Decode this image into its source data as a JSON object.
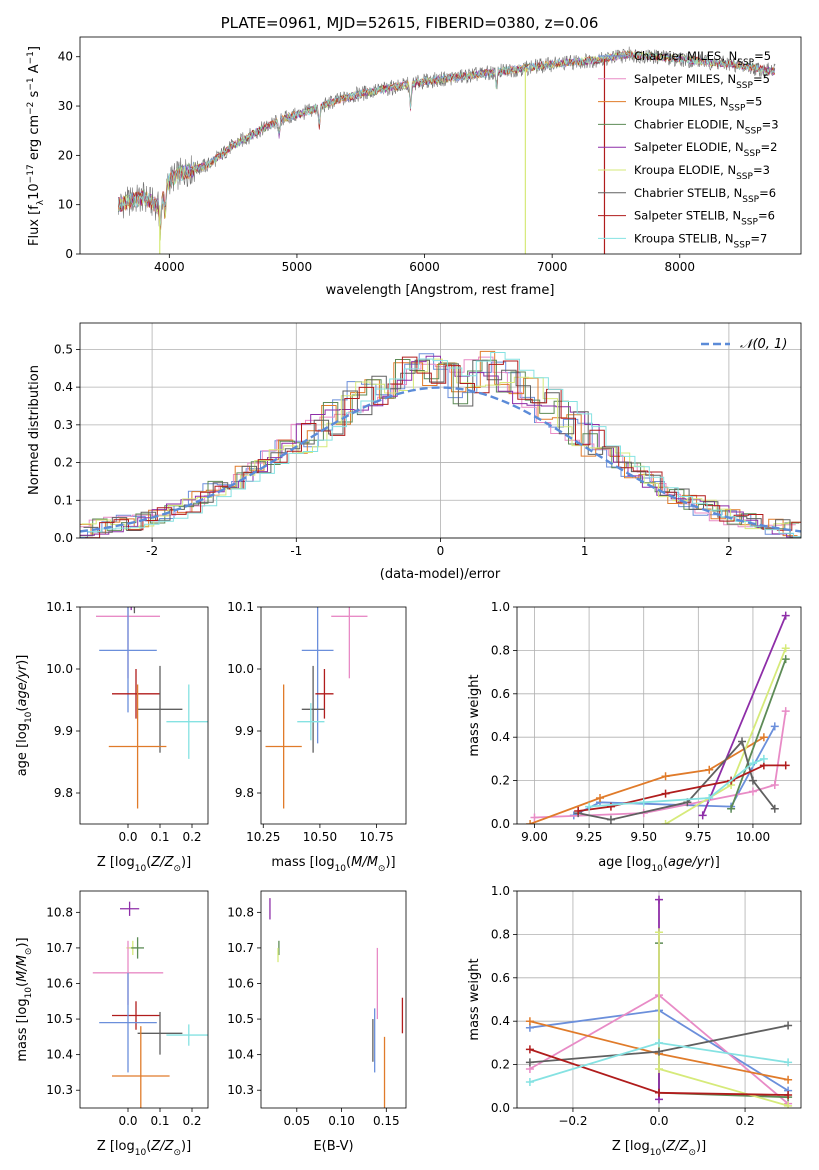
{
  "colors": {
    "Chabrier MILES": "#6b8fdb",
    "Salpeter MILES": "#e88bc6",
    "Kroupa MILES": "#e07b2a",
    "Chabrier ELODIE": "#5d8b56",
    "Salpeter ELODIE": "#8e2ea8",
    "Kroupa ELODIE": "#d6ea7a",
    "Chabrier STELIB": "#606060",
    "Salpeter STELIB": "#b01c1c",
    "Kroupa STELIB": "#85e2e2"
  },
  "chart_data": [
    {
      "id": "spectrum",
      "type": "line",
      "title": "PLATE=0961, MJD=52615, FIBERID=0380, z=0.06",
      "xlabel": "wavelength [Angstrom, rest frame]",
      "ylabel": "Flux [f_λ10^-17 erg cm^-2 s^-1 A^-1]",
      "xlim": [
        3300,
        8950
      ],
      "ylim": [
        0,
        44
      ],
      "xticks": [
        4000,
        5000,
        6000,
        7000,
        8000
      ],
      "yticks": [
        0,
        10,
        20,
        30,
        40
      ],
      "continuum": [
        [
          3600,
          10
        ],
        [
          3800,
          11.5
        ],
        [
          3920,
          9.5
        ],
        [
          4000,
          15
        ],
        [
          4100,
          16.5
        ],
        [
          4300,
          18
        ],
        [
          4500,
          22
        ],
        [
          4700,
          25
        ],
        [
          4900,
          27.5
        ],
        [
          5100,
          29
        ],
        [
          5300,
          31
        ],
        [
          5500,
          32.5
        ],
        [
          5800,
          34
        ],
        [
          6000,
          35
        ],
        [
          6300,
          36
        ],
        [
          6600,
          37
        ],
        [
          7000,
          38.5
        ],
        [
          7400,
          39.5
        ],
        [
          7600,
          40.5
        ],
        [
          8000,
          39.5
        ],
        [
          8400,
          38.5
        ],
        [
          8750,
          37
        ]
      ],
      "features": [
        [
          3930,
          -6
        ],
        [
          3968,
          -5
        ],
        [
          4861,
          -3
        ],
        [
          5175,
          -4
        ],
        [
          5890,
          -5
        ],
        [
          6563,
          -3
        ]
      ],
      "spikes": [
        {
          "x": 3925,
          "model": "Kroupa ELODIE"
        },
        {
          "x": 6790,
          "model": "Kroupa ELODIE"
        },
        {
          "x": 7410,
          "model": "Salpeter STELIB"
        }
      ],
      "legend_position": "right",
      "legend": [
        {
          "model": "Chabrier MILES",
          "label_main": "Chabrier MILES, N",
          "label_sub": "SSP",
          "label_end": "=5"
        },
        {
          "model": "Salpeter MILES",
          "label_main": "Salpeter MILES, N",
          "label_sub": "SSP",
          "label_end": "=5"
        },
        {
          "model": "Kroupa MILES",
          "label_main": "Kroupa MILES, N",
          "label_sub": "SSP",
          "label_end": "=5"
        },
        {
          "model": "Chabrier ELODIE",
          "label_main": "Chabrier ELODIE, N",
          "label_sub": "SSP",
          "label_end": "=3"
        },
        {
          "model": "Salpeter ELODIE",
          "label_main": "Salpeter ELODIE, N",
          "label_sub": "SSP",
          "label_end": "=2"
        },
        {
          "model": "Kroupa ELODIE",
          "label_main": "Kroupa ELODIE, N",
          "label_sub": "SSP",
          "label_end": "=3"
        },
        {
          "model": "Chabrier STELIB",
          "label_main": "Chabrier STELIB, N",
          "label_sub": "SSP",
          "label_end": "=6"
        },
        {
          "model": "Salpeter STELIB",
          "label_main": "Salpeter STELIB, N",
          "label_sub": "SSP",
          "label_end": "=6"
        },
        {
          "model": "Kroupa STELIB",
          "label_main": "Kroupa STELIB, N",
          "label_sub": "SSP",
          "label_end": "=7"
        }
      ]
    },
    {
      "id": "residuals",
      "type": "line",
      "xlabel": "(data-model)/error",
      "ylabel": "Normed distribution",
      "xlim": [
        -2.5,
        2.5
      ],
      "ylim": [
        0,
        0.57
      ],
      "xticks": [
        -2,
        -1,
        0,
        1,
        2
      ],
      "yticks": [
        0.0,
        0.1,
        0.2,
        0.3,
        0.4,
        0.5
      ],
      "grid": true,
      "bin_width": 0.1,
      "hist_values": [
        0.02,
        0.03,
        0.035,
        0.04,
        0.05,
        0.06,
        0.07,
        0.085,
        0.105,
        0.13,
        0.15,
        0.17,
        0.19,
        0.215,
        0.24,
        0.26,
        0.285,
        0.315,
        0.345,
        0.37,
        0.395,
        0.415,
        0.435,
        0.455,
        0.445,
        0.42,
        0.395,
        0.43,
        0.45,
        0.43,
        0.4,
        0.38,
        0.35,
        0.32,
        0.29,
        0.26,
        0.23,
        0.205,
        0.18,
        0.155,
        0.13,
        0.11,
        0.095,
        0.08,
        0.065,
        0.055,
        0.045,
        0.038,
        0.03,
        0.022
      ],
      "normal_curve": {
        "label": "𝒩(0, 1)",
        "mean": 0,
        "sigma": 1,
        "color": "#5b8bd8"
      },
      "legend_position": "upper right"
    },
    {
      "id": "age-vs-Z",
      "type": "scatter",
      "xlabel": "Z [log10(Z/Z⊙)]",
      "ylabel": "age [log10(age/yr)]",
      "xlim": [
        -0.15,
        0.25
      ],
      "ylim": [
        9.75,
        10.1
      ],
      "xticks": [
        0.0,
        0.1,
        0.2
      ],
      "yticks": [
        9.8,
        9.9,
        10.0,
        10.1
      ],
      "points": [
        {
          "model": "Salpeter ELODIE",
          "x": 0.01,
          "y": 10.135,
          "xerr": 0.02,
          "yerr": 0.04
        },
        {
          "model": "Kroupa ELODIE",
          "x": 0.02,
          "y": 10.125,
          "xerr": 0.02,
          "yerr": 0.02
        },
        {
          "model": "Chabrier ELODIE",
          "x": 0.025,
          "y": 10.115,
          "xerr": 0.02,
          "yerr": 0.015
        },
        {
          "model": "Chabrier STELIB",
          "x": 0.02,
          "y": 10.11,
          "xerr": 0.015,
          "yerr": 0.02
        },
        {
          "model": "Salpeter MILES",
          "x": 0.0,
          "y": 10.085,
          "xerr": 0.1,
          "yerr": 0.1
        },
        {
          "model": "Chabrier MILES",
          "x": 0.0,
          "y": 10.03,
          "xerr": 0.09,
          "yerr": 0.1
        },
        {
          "model": "Salpeter STELIB",
          "x": 0.025,
          "y": 9.96,
          "xerr": 0.075,
          "yerr": 0.04
        },
        {
          "model": "Chabrier STELIB",
          "x": 0.1,
          "y": 9.935,
          "xerr": 0.07,
          "yerr": 0.07
        },
        {
          "model": "Kroupa STELIB",
          "x": 0.19,
          "y": 9.915,
          "xerr": 0.07,
          "yerr": 0.06
        },
        {
          "model": "Kroupa MILES",
          "x": 0.03,
          "y": 9.875,
          "xerr": 0.09,
          "yerr": 0.1
        }
      ]
    },
    {
      "id": "age-vs-mass",
      "type": "scatter",
      "xlabel": "mass [log10(M/M⊙)]",
      "ylabel": "",
      "xlim": [
        10.24,
        10.88
      ],
      "ylim": [
        9.75,
        10.1
      ],
      "xticks": [
        10.25,
        10.5,
        10.75
      ],
      "yticks": [
        9.8,
        9.9,
        10.0,
        10.1
      ],
      "points": [
        {
          "model": "Salpeter ELODIE",
          "x": 10.81,
          "y": 10.135,
          "xerr": 0.02,
          "yerr": 0.035
        },
        {
          "model": "Kroupa ELODIE",
          "x": 10.7,
          "y": 10.125,
          "xerr": 0.015,
          "yerr": 0.01
        },
        {
          "model": "Chabrier ELODIE",
          "x": 10.7,
          "y": 10.115,
          "xerr": 0.02,
          "yerr": 0.015
        },
        {
          "model": "Salpeter MILES",
          "x": 10.63,
          "y": 10.085,
          "xerr": 0.08,
          "yerr": 0.1
        },
        {
          "model": "Chabrier MILES",
          "x": 10.49,
          "y": 10.03,
          "xerr": 0.07,
          "yerr": 0.15
        },
        {
          "model": "Salpeter STELIB",
          "x": 10.52,
          "y": 9.96,
          "xerr": 0.04,
          "yerr": 0.04
        },
        {
          "model": "Chabrier STELIB",
          "x": 10.47,
          "y": 9.935,
          "xerr": 0.05,
          "yerr": 0.07
        },
        {
          "model": "Kroupa STELIB",
          "x": 10.46,
          "y": 9.915,
          "xerr": 0.06,
          "yerr": 0.03
        },
        {
          "model": "Kroupa MILES",
          "x": 10.34,
          "y": 9.875,
          "xerr": 0.08,
          "yerr": 0.1
        }
      ]
    },
    {
      "id": "mass-weight-vs-age",
      "type": "line",
      "xlabel": "age [log10(age/yr)]",
      "ylabel": "mass weight",
      "xlim": [
        8.92,
        10.22
      ],
      "ylim": [
        0.0,
        1.0
      ],
      "xticks": [
        9.0,
        9.25,
        9.5,
        9.75,
        10.0
      ],
      "yticks": [
        0.0,
        0.2,
        0.4,
        0.6,
        0.8,
        1.0
      ],
      "grid": true,
      "series": [
        {
          "model": "Chabrier MILES",
          "x": [
            9.18,
            9.3,
            9.9,
            10.1
          ],
          "y": [
            0.04,
            0.1,
            0.08,
            0.45
          ]
        },
        {
          "model": "Salpeter MILES",
          "x": [
            9.0,
            9.5,
            10.0,
            10.1,
            10.15
          ],
          "y": [
            0.03,
            0.05,
            0.15,
            0.18,
            0.52
          ]
        },
        {
          "model": "Kroupa MILES",
          "x": [
            8.98,
            9.3,
            9.6,
            9.8,
            10.05
          ],
          "y": [
            0.0,
            0.12,
            0.22,
            0.25,
            0.4
          ]
        },
        {
          "model": "Chabrier ELODIE",
          "x": [
            9.9,
            10.15
          ],
          "y": [
            0.07,
            0.76
          ]
        },
        {
          "model": "Salpeter ELODIE",
          "x": [
            9.77,
            10.15
          ],
          "y": [
            0.04,
            0.96
          ]
        },
        {
          "model": "Kroupa ELODIE",
          "x": [
            9.6,
            9.9,
            10.15
          ],
          "y": [
            0.0,
            0.18,
            0.81
          ]
        },
        {
          "model": "Chabrier STELIB",
          "x": [
            9.2,
            9.35,
            9.7,
            9.95,
            10.0,
            10.1
          ],
          "y": [
            0.05,
            0.02,
            0.1,
            0.38,
            0.2,
            0.07
          ]
        },
        {
          "model": "Salpeter STELIB",
          "x": [
            9.2,
            9.35,
            9.6,
            9.9,
            10.05,
            10.15
          ],
          "y": [
            0.06,
            0.08,
            0.14,
            0.2,
            0.27,
            0.27
          ]
        },
        {
          "model": "Kroupa STELIB",
          "x": [
            9.25,
            9.5,
            9.8,
            10.0,
            10.05
          ],
          "y": [
            0.08,
            0.1,
            0.12,
            0.28,
            0.3
          ]
        }
      ]
    },
    {
      "id": "mass-vs-Z",
      "type": "scatter",
      "xlabel": "Z [log10(Z/Z⊙)]",
      "ylabel": "mass [log10(M/M⊙)]",
      "xlim": [
        -0.15,
        0.25
      ],
      "ylim": [
        10.25,
        10.86
      ],
      "xticks": [
        0.0,
        0.1,
        0.2
      ],
      "yticks": [
        10.3,
        10.4,
        10.5,
        10.6,
        10.7,
        10.8
      ],
      "points": [
        {
          "model": "Salpeter ELODIE",
          "x": 0.005,
          "y": 10.81,
          "xerr": 0.03,
          "yerr": 0.02
        },
        {
          "model": "Kroupa ELODIE",
          "x": 0.015,
          "y": 10.7,
          "xerr": 0.02,
          "yerr": 0.02
        },
        {
          "model": "Chabrier ELODIE",
          "x": 0.03,
          "y": 10.7,
          "xerr": 0.02,
          "yerr": 0.03
        },
        {
          "model": "Salpeter MILES",
          "x": 0.0,
          "y": 10.63,
          "xerr": 0.11,
          "yerr": 0.09
        },
        {
          "model": "Salpeter STELIB",
          "x": 0.025,
          "y": 10.51,
          "xerr": 0.075,
          "yerr": 0.04
        },
        {
          "model": "Chabrier MILES",
          "x": 0.0,
          "y": 10.49,
          "xerr": 0.09,
          "yerr": 0.14
        },
        {
          "model": "Chabrier STELIB",
          "x": 0.1,
          "y": 10.46,
          "xerr": 0.07,
          "yerr": 0.06
        },
        {
          "model": "Kroupa STELIB",
          "x": 0.19,
          "y": 10.455,
          "xerr": 0.07,
          "yerr": 0.03
        },
        {
          "model": "Kroupa MILES",
          "x": 0.04,
          "y": 10.34,
          "xerr": 0.09,
          "yerr": 0.14
        }
      ]
    },
    {
      "id": "mass-vs-EBV",
      "type": "scatter",
      "xlabel": "E(B-V)",
      "ylabel": "",
      "xlim": [
        0.01,
        0.172
      ],
      "ylim": [
        10.25,
        10.86
      ],
      "xticks": [
        0.05,
        0.1,
        0.15
      ],
      "yticks": [
        10.3,
        10.4,
        10.5,
        10.6,
        10.7,
        10.8
      ],
      "points": [
        {
          "model": "Salpeter ELODIE",
          "x": 0.02,
          "y": 10.81,
          "xerr": 0.0,
          "yerr": 0.03
        },
        {
          "model": "Chabrier ELODIE",
          "x": 0.03,
          "y": 10.7,
          "xerr": 0.0,
          "yerr": 0.02
        },
        {
          "model": "Kroupa ELODIE",
          "x": 0.029,
          "y": 10.68,
          "xerr": 0.0,
          "yerr": 0.02
        },
        {
          "model": "Salpeter MILES",
          "x": 0.14,
          "y": 10.6,
          "xerr": 0.0,
          "yerr": 0.1
        },
        {
          "model": "Salpeter STELIB",
          "x": 0.168,
          "y": 10.51,
          "xerr": 0.0,
          "yerr": 0.05
        },
        {
          "model": "Chabrier MILES",
          "x": 0.137,
          "y": 10.44,
          "xerr": 0.0,
          "yerr": 0.09
        },
        {
          "model": "Chabrier STELIB",
          "x": 0.135,
          "y": 10.44,
          "xerr": 0.0,
          "yerr": 0.06
        },
        {
          "model": "Kroupa MILES",
          "x": 0.148,
          "y": 10.33,
          "xerr": 0.0,
          "yerr": 0.12
        }
      ]
    },
    {
      "id": "mass-weight-vs-Z",
      "type": "line",
      "xlabel": "Z [log10(Z/Z⊙)]",
      "ylabel": "mass weight",
      "xlim": [
        -0.33,
        0.33
      ],
      "ylim": [
        0.0,
        1.0
      ],
      "xticks": [
        -0.2,
        0.0,
        0.2
      ],
      "yticks": [
        0.0,
        0.2,
        0.4,
        0.6,
        0.8,
        1.0
      ],
      "grid": true,
      "series": [
        {
          "model": "Chabrier MILES",
          "x": [
            -0.3,
            0.0,
            0.3
          ],
          "y": [
            0.37,
            0.45,
            0.08
          ]
        },
        {
          "model": "Salpeter MILES",
          "x": [
            -0.3,
            0.0,
            0.3
          ],
          "y": [
            0.18,
            0.52,
            0.02
          ]
        },
        {
          "model": "Kroupa MILES",
          "x": [
            -0.3,
            0.0,
            0.3
          ],
          "y": [
            0.4,
            0.25,
            0.13
          ]
        },
        {
          "model": "Chabrier ELODIE",
          "x": [
            0.0,
            0.0,
            0.3
          ],
          "y": [
            0.76,
            0.07,
            0.05
          ]
        },
        {
          "model": "Salpeter ELODIE",
          "x": [
            0.0,
            0.0
          ],
          "y": [
            0.96,
            0.04
          ]
        },
        {
          "model": "Kroupa ELODIE",
          "x": [
            0.0,
            0.0,
            0.3
          ],
          "y": [
            0.81,
            0.18,
            0.01
          ]
        },
        {
          "model": "Chabrier STELIB",
          "x": [
            -0.3,
            0.0,
            0.3
          ],
          "y": [
            0.21,
            0.26,
            0.38
          ]
        },
        {
          "model": "Salpeter STELIB",
          "x": [
            -0.3,
            0.0,
            0.3
          ],
          "y": [
            0.27,
            0.07,
            0.06
          ]
        },
        {
          "model": "Kroupa STELIB",
          "x": [
            -0.3,
            0.0,
            0.3
          ],
          "y": [
            0.12,
            0.3,
            0.21
          ]
        }
      ]
    }
  ]
}
